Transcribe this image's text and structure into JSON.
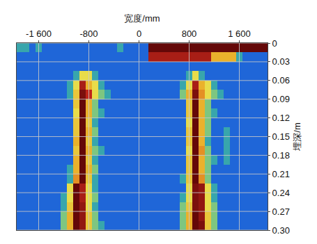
{
  "chart_data": {
    "type": "heatmap",
    "xlabel": "宽度/mm",
    "ylabel": "埋深/m",
    "x": [
      -1900,
      -1800,
      -1700,
      -1600,
      -1500,
      -1400,
      -1300,
      -1200,
      -1100,
      -1000,
      -900,
      -800,
      -700,
      -600,
      -500,
      -400,
      -300,
      -200,
      -100,
      0,
      100,
      200,
      300,
      400,
      500,
      600,
      700,
      800,
      900,
      1000,
      1100,
      1200,
      1300,
      1400,
      1500,
      1600,
      1700,
      1800,
      1900,
      2000
    ],
    "y": [
      0.0075,
      0.0225,
      0.0375,
      0.0525,
      0.0675,
      0.0825,
      0.0975,
      0.1125,
      0.1275,
      0.1425,
      0.1575,
      0.1725,
      0.1875,
      0.2025,
      0.2175,
      0.2325,
      0.2475,
      0.2625,
      0.2775,
      0.2925
    ],
    "z": [
      [
        0.4,
        0.4,
        0,
        0.4,
        0,
        0,
        0,
        0,
        0,
        0,
        0,
        0,
        0,
        0,
        0,
        0,
        0.4,
        0,
        0,
        0,
        0,
        1,
        1,
        1,
        1,
        1,
        1,
        1,
        1,
        1,
        1,
        1,
        1,
        1,
        1,
        1,
        1,
        1,
        1,
        1
      ],
      [
        0,
        0,
        0,
        0,
        0,
        0,
        0,
        0,
        0,
        0,
        0,
        0,
        0,
        0,
        0,
        0,
        0,
        0,
        0,
        0,
        0,
        0.85,
        0.85,
        0.85,
        0.85,
        0.85,
        0.85,
        0.85,
        0.85,
        0.85,
        0.85,
        0.6,
        0.6,
        0.6,
        0.6,
        0.4,
        0,
        0,
        0,
        0
      ],
      [
        0,
        0,
        0,
        0,
        0,
        0,
        0,
        0,
        0,
        0,
        0,
        0,
        0,
        0,
        0,
        0,
        0,
        0,
        0,
        0,
        0,
        0,
        0,
        0,
        0,
        0,
        0,
        0,
        0,
        0,
        0,
        0,
        0,
        0,
        0,
        0,
        0,
        0,
        0,
        0
      ],
      [
        0,
        0,
        0,
        0,
        0,
        0,
        0,
        0,
        0,
        0.4,
        0.5,
        0.5,
        0.4,
        0,
        0,
        0,
        0,
        0,
        0,
        0,
        0,
        0,
        0,
        0,
        0,
        0,
        0,
        0.4,
        0.5,
        0.4,
        0,
        0,
        0,
        0,
        0,
        0,
        0,
        0,
        0,
        0
      ],
      [
        0,
        0,
        0,
        0,
        0,
        0,
        0,
        0,
        0.4,
        0.5,
        0.85,
        0.6,
        0.5,
        0.4,
        0,
        0,
        0,
        0,
        0,
        0,
        0,
        0,
        0,
        0,
        0,
        0,
        0.4,
        0.5,
        0.85,
        0.6,
        0.5,
        0.4,
        0,
        0,
        0,
        0,
        0,
        0,
        0,
        0
      ],
      [
        0,
        0,
        0,
        0,
        0,
        0,
        0,
        0,
        0.4,
        0.55,
        0.95,
        0.8,
        0.5,
        0.45,
        0.4,
        0,
        0,
        0,
        0,
        0,
        0,
        0,
        0,
        0,
        0,
        0,
        0.45,
        0.6,
        0.95,
        0.65,
        0.5,
        0.45,
        0.4,
        0,
        0,
        0,
        0,
        0,
        0,
        0
      ],
      [
        0,
        0,
        0,
        0,
        0,
        0,
        0,
        0,
        0,
        0.55,
        1,
        0.6,
        0.45,
        0,
        0,
        0,
        0,
        0,
        0,
        0,
        0,
        0,
        0,
        0,
        0,
        0,
        0,
        0.55,
        1,
        0.6,
        0.45,
        0,
        0,
        0,
        0,
        0,
        0,
        0,
        0,
        0
      ],
      [
        0,
        0,
        0,
        0,
        0,
        0,
        0,
        0,
        0,
        0.5,
        1,
        0.6,
        0.45,
        0.4,
        0,
        0,
        0,
        0,
        0,
        0,
        0,
        0,
        0,
        0,
        0,
        0,
        0,
        0.55,
        1,
        0.6,
        0.45,
        0.4,
        0,
        0,
        0,
        0,
        0,
        0,
        0,
        0
      ],
      [
        0,
        0,
        0,
        0,
        0,
        0,
        0,
        0,
        0,
        0.55,
        1,
        0.55,
        0.4,
        0,
        0,
        0,
        0,
        0,
        0,
        0,
        0,
        0,
        0,
        0,
        0,
        0,
        0,
        0.5,
        1,
        0.6,
        0.45,
        0,
        0,
        0,
        0,
        0,
        0,
        0,
        0,
        0
      ],
      [
        0,
        0,
        0,
        0,
        0,
        0,
        0,
        0,
        0,
        0.55,
        1,
        0.6,
        0.45,
        0,
        0,
        0,
        0,
        0,
        0,
        0,
        0,
        0,
        0,
        0,
        0,
        0,
        0,
        0.55,
        1,
        0.6,
        0.45,
        0,
        0,
        0.4,
        0,
        0,
        0,
        0,
        0,
        0
      ],
      [
        0,
        0,
        0,
        0,
        0,
        0,
        0,
        0,
        0,
        0.6,
        1,
        0.55,
        0.4,
        0,
        0,
        0,
        0,
        0,
        0,
        0,
        0,
        0,
        0,
        0,
        0,
        0,
        0,
        0.55,
        1,
        0.6,
        0.4,
        0,
        0,
        0.4,
        0,
        0,
        0,
        0,
        0,
        0
      ],
      [
        0,
        0,
        0,
        0,
        0,
        0,
        0,
        0,
        0,
        0.55,
        1,
        0.6,
        0.45,
        0.4,
        0,
        0,
        0,
        0,
        0,
        0,
        0,
        0,
        0,
        0,
        0,
        0,
        0,
        0.5,
        1,
        0.65,
        0.45,
        0,
        0,
        0.4,
        0,
        0,
        0,
        0,
        0,
        0
      ],
      [
        0,
        0,
        0,
        0,
        0,
        0,
        0,
        0,
        0,
        0.6,
        1,
        0.55,
        0.4,
        0,
        0,
        0,
        0,
        0,
        0,
        0,
        0,
        0,
        0,
        0,
        0,
        0,
        0,
        0.55,
        1,
        0.6,
        0.45,
        0.4,
        0,
        0.4,
        0,
        0,
        0,
        0,
        0,
        0
      ],
      [
        0,
        0,
        0,
        0,
        0,
        0,
        0,
        0,
        0.4,
        0.6,
        1,
        0.6,
        0.45,
        0,
        0,
        0,
        0,
        0,
        0,
        0,
        0,
        0,
        0,
        0,
        0,
        0,
        0,
        0.55,
        1,
        0.6,
        0.45,
        0,
        0,
        0,
        0,
        0,
        0,
        0,
        0,
        0
      ],
      [
        0,
        0,
        0,
        0,
        0,
        0,
        0,
        0,
        0.4,
        0.65,
        1,
        0.55,
        0.4,
        0,
        0,
        0,
        0,
        0,
        0,
        0,
        0,
        0,
        0,
        0,
        0,
        0,
        0.4,
        0.55,
        1,
        0.65,
        0.45,
        0,
        0,
        0,
        0,
        0,
        0,
        0,
        0,
        0
      ],
      [
        0,
        0,
        0,
        0,
        0,
        0,
        0,
        0,
        0.5,
        1,
        0.85,
        0.5,
        0.4,
        0,
        0,
        0,
        0,
        0,
        0,
        0,
        0,
        0,
        0,
        0,
        0,
        0,
        0,
        0.5,
        0.95,
        0.9,
        0.5,
        0.4,
        0,
        0,
        0,
        0,
        0,
        0,
        0,
        0
      ],
      [
        0,
        0,
        0,
        0,
        0,
        0,
        0,
        0.4,
        0.5,
        1,
        0.85,
        0.5,
        0.45,
        0,
        0,
        0,
        0,
        0,
        0,
        0,
        0,
        0,
        0,
        0,
        0,
        0,
        0.4,
        0.5,
        0.95,
        0.9,
        0.5,
        0.4,
        0,
        0,
        0,
        0,
        0,
        0,
        0,
        0
      ],
      [
        0,
        0,
        0,
        0,
        0,
        0,
        0,
        0.4,
        0.55,
        1,
        0.9,
        0.5,
        0.4,
        0,
        0,
        0,
        0,
        0,
        0,
        0,
        0,
        0,
        0,
        0,
        0,
        0,
        0.45,
        0.55,
        0.95,
        0.9,
        0.5,
        0.45,
        0,
        0,
        0,
        0,
        0,
        0,
        0,
        0
      ],
      [
        0,
        0,
        0,
        0,
        0,
        0,
        0,
        0.45,
        0.6,
        1,
        0.9,
        0.55,
        0.45,
        0,
        0,
        0,
        0,
        0,
        0,
        0,
        0,
        0,
        0,
        0,
        0,
        0,
        0.45,
        0.6,
        1,
        0.9,
        0.55,
        0.45,
        0,
        0,
        0,
        0,
        0,
        0,
        0,
        0
      ],
      [
        0,
        0,
        0,
        0,
        0,
        0,
        0,
        0.45,
        0.6,
        1,
        0.9,
        0.55,
        0.45,
        0.4,
        0,
        0,
        0,
        0,
        0,
        0,
        0,
        0,
        0,
        0,
        0,
        0,
        0.45,
        0.6,
        1,
        0.95,
        0.55,
        0.45,
        0,
        0,
        0,
        0,
        0,
        0,
        0,
        0
      ]
    ],
    "zlim": [
      0,
      1
    ],
    "xlim": [
      -1950,
      2050
    ],
    "xticks": [
      {
        "value": -1600,
        "label": "-1 600"
      },
      -800,
      0,
      800,
      {
        "value": 1600,
        "label": "1 600"
      }
    ],
    "ylim": [
      0.3,
      0
    ],
    "yticks": [
      0,
      0.03,
      0.06,
      0.09,
      0.12,
      0.15,
      0.18,
      0.21,
      0.24,
      0.27,
      {
        "value": 0.3,
        "label": "0.30"
      }
    ],
    "grid": true
  }
}
